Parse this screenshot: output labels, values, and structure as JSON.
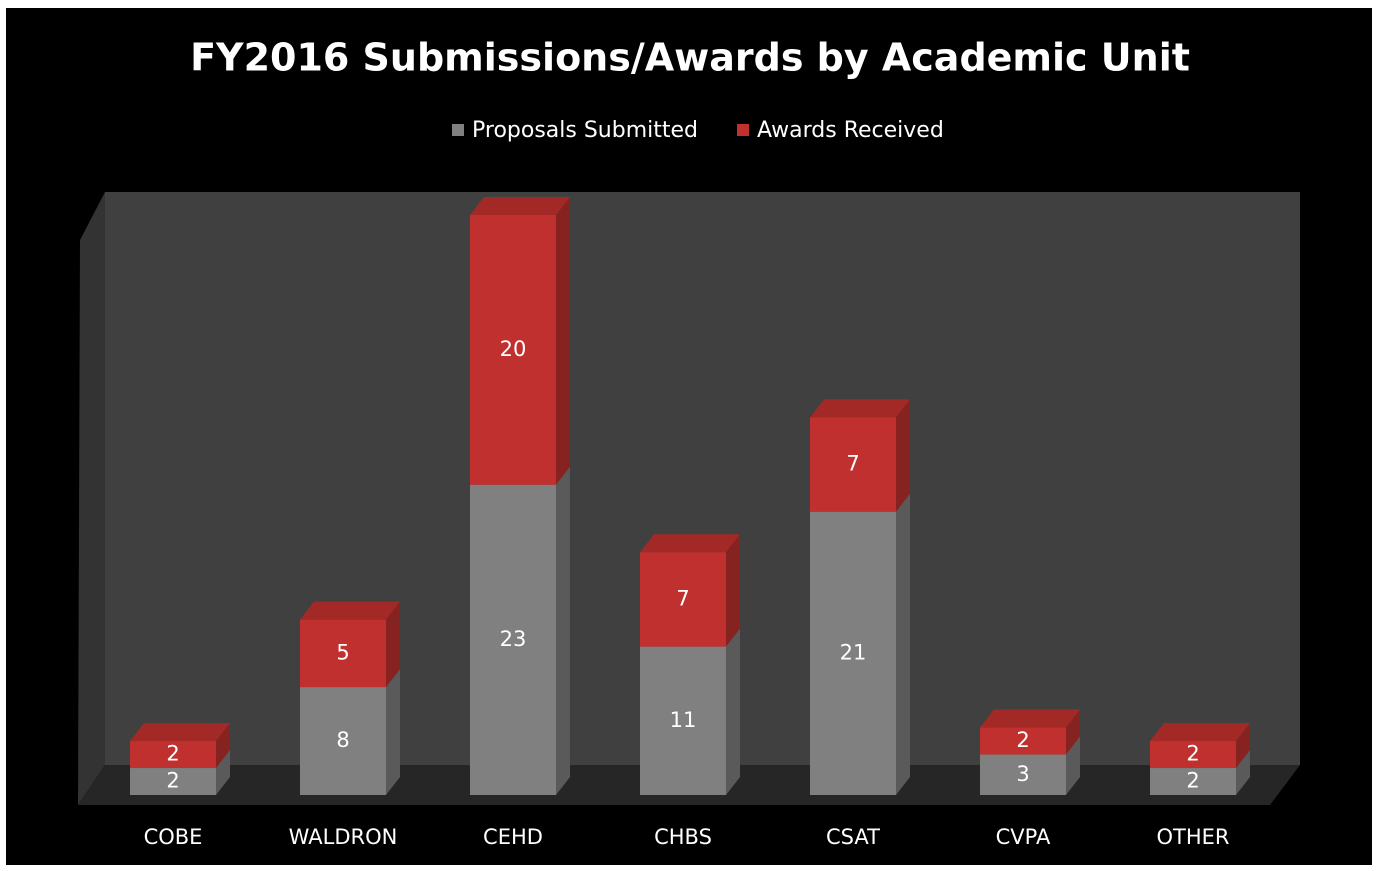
{
  "chart_data": {
    "type": "bar",
    "stacked": true,
    "three_d": true,
    "title": "FY2016 Submissions/Awards by Academic Unit",
    "categories": [
      "COBE",
      "WALDRON",
      "CEHD",
      "CHBS",
      "CSAT",
      "CVPA",
      "OTHER"
    ],
    "series": [
      {
        "name": "Proposals Submitted",
        "color": "#808080",
        "values": [
          2,
          8,
          23,
          11,
          21,
          3,
          2
        ]
      },
      {
        "name": "Awards Received",
        "color": "#c0302e",
        "values": [
          2,
          5,
          20,
          7,
          7,
          2,
          2
        ]
      }
    ],
    "legend": "top"
  }
}
